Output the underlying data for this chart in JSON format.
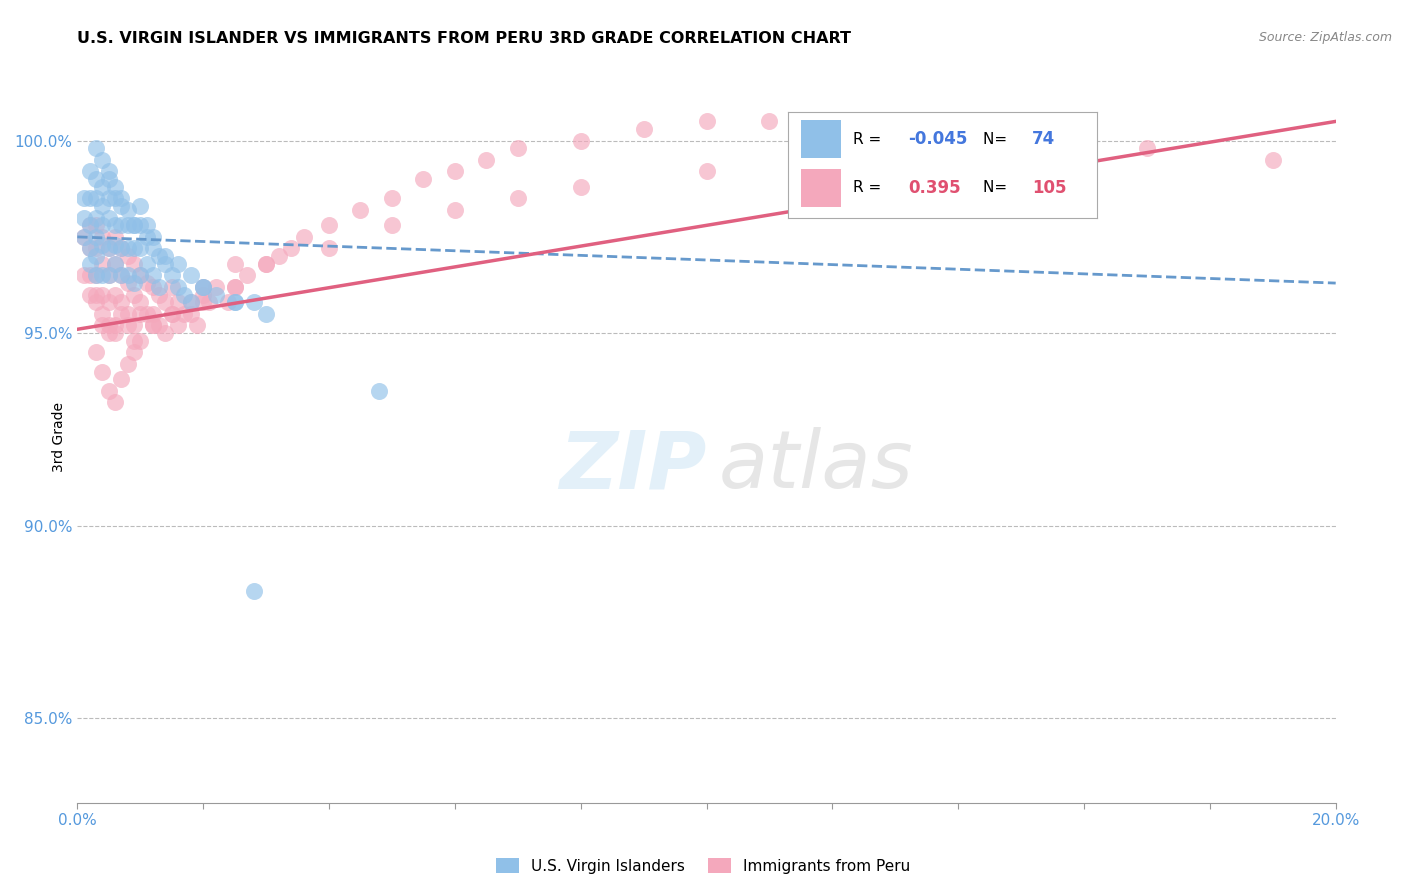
{
  "title": "U.S. VIRGIN ISLANDER VS IMMIGRANTS FROM PERU 3RD GRADE CORRELATION CHART",
  "source": "Source: ZipAtlas.com",
  "ylabel": "3rd Grade",
  "ylabel_ticks": [
    "85.0%",
    "90.0%",
    "95.0%",
    "100.0%"
  ],
  "ylabel_values": [
    0.85,
    0.9,
    0.95,
    1.0
  ],
  "xmin": 0.0,
  "xmax": 0.2,
  "ymin": 0.828,
  "ymax": 1.018,
  "legend_R_blue": "-0.045",
  "legend_N_blue": "74",
  "legend_R_pink": "0.395",
  "legend_N_pink": "105",
  "blue_color": "#90C0E8",
  "pink_color": "#F4A8BC",
  "trend_blue_color": "#6699CC",
  "trend_pink_color": "#E06080",
  "blue_trend_x": [
    0.0,
    0.2
  ],
  "blue_trend_y": [
    0.975,
    0.963
  ],
  "pink_trend_x": [
    0.0,
    0.2
  ],
  "pink_trend_y": [
    0.951,
    1.005
  ],
  "blue_scatter_x": [
    0.001,
    0.001,
    0.001,
    0.002,
    0.002,
    0.002,
    0.002,
    0.002,
    0.003,
    0.003,
    0.003,
    0.003,
    0.003,
    0.003,
    0.004,
    0.004,
    0.004,
    0.004,
    0.004,
    0.005,
    0.005,
    0.005,
    0.005,
    0.005,
    0.006,
    0.006,
    0.006,
    0.006,
    0.007,
    0.007,
    0.007,
    0.007,
    0.008,
    0.008,
    0.008,
    0.009,
    0.009,
    0.009,
    0.01,
    0.01,
    0.01,
    0.011,
    0.011,
    0.012,
    0.012,
    0.013,
    0.013,
    0.014,
    0.015,
    0.016,
    0.017,
    0.018,
    0.02,
    0.022,
    0.025,
    0.028,
    0.03,
    0.003,
    0.004,
    0.005,
    0.006,
    0.007,
    0.008,
    0.009,
    0.01,
    0.011,
    0.012,
    0.014,
    0.016,
    0.018,
    0.02,
    0.025,
    0.048,
    0.028
  ],
  "blue_scatter_y": [
    0.98,
    0.975,
    0.985,
    0.985,
    0.978,
    0.972,
    0.968,
    0.992,
    0.99,
    0.985,
    0.98,
    0.975,
    0.97,
    0.965,
    0.988,
    0.983,
    0.978,
    0.973,
    0.965,
    0.99,
    0.985,
    0.98,
    0.972,
    0.965,
    0.985,
    0.978,
    0.973,
    0.968,
    0.983,
    0.978,
    0.972,
    0.965,
    0.978,
    0.972,
    0.965,
    0.978,
    0.972,
    0.963,
    0.978,
    0.972,
    0.965,
    0.975,
    0.968,
    0.972,
    0.965,
    0.97,
    0.962,
    0.968,
    0.965,
    0.962,
    0.96,
    0.958,
    0.962,
    0.96,
    0.958,
    0.958,
    0.955,
    0.998,
    0.995,
    0.992,
    0.988,
    0.985,
    0.982,
    0.978,
    0.983,
    0.978,
    0.975,
    0.97,
    0.968,
    0.965,
    0.962,
    0.958,
    0.935,
    0.883
  ],
  "pink_scatter_x": [
    0.001,
    0.001,
    0.002,
    0.002,
    0.002,
    0.003,
    0.003,
    0.003,
    0.003,
    0.004,
    0.004,
    0.004,
    0.004,
    0.005,
    0.005,
    0.005,
    0.005,
    0.006,
    0.006,
    0.006,
    0.006,
    0.007,
    0.007,
    0.007,
    0.008,
    0.008,
    0.008,
    0.009,
    0.009,
    0.009,
    0.01,
    0.01,
    0.011,
    0.011,
    0.012,
    0.012,
    0.013,
    0.013,
    0.014,
    0.015,
    0.015,
    0.016,
    0.017,
    0.018,
    0.019,
    0.02,
    0.021,
    0.022,
    0.024,
    0.025,
    0.027,
    0.03,
    0.032,
    0.034,
    0.036,
    0.04,
    0.045,
    0.05,
    0.055,
    0.06,
    0.065,
    0.07,
    0.08,
    0.09,
    0.1,
    0.11,
    0.13,
    0.15,
    0.17,
    0.19,
    0.002,
    0.003,
    0.004,
    0.005,
    0.006,
    0.007,
    0.008,
    0.009,
    0.01,
    0.012,
    0.014,
    0.016,
    0.018,
    0.02,
    0.025,
    0.03,
    0.04,
    0.05,
    0.06,
    0.07,
    0.08,
    0.1,
    0.12,
    0.003,
    0.004,
    0.005,
    0.006,
    0.007,
    0.008,
    0.009,
    0.01,
    0.012,
    0.015,
    0.02,
    0.025
  ],
  "pink_scatter_y": [
    0.975,
    0.965,
    0.978,
    0.972,
    0.96,
    0.978,
    0.972,
    0.965,
    0.958,
    0.975,
    0.968,
    0.96,
    0.952,
    0.972,
    0.965,
    0.958,
    0.95,
    0.975,
    0.968,
    0.96,
    0.952,
    0.972,
    0.965,
    0.958,
    0.97,
    0.963,
    0.955,
    0.968,
    0.96,
    0.952,
    0.965,
    0.958,
    0.963,
    0.955,
    0.962,
    0.955,
    0.96,
    0.952,
    0.958,
    0.962,
    0.955,
    0.958,
    0.955,
    0.958,
    0.952,
    0.96,
    0.958,
    0.962,
    0.958,
    0.962,
    0.965,
    0.968,
    0.97,
    0.972,
    0.975,
    0.978,
    0.982,
    0.985,
    0.99,
    0.992,
    0.995,
    0.998,
    1.0,
    1.003,
    1.005,
    1.005,
    1.003,
    1.0,
    0.998,
    0.995,
    0.965,
    0.96,
    0.955,
    0.952,
    0.95,
    0.955,
    0.952,
    0.948,
    0.955,
    0.952,
    0.95,
    0.952,
    0.955,
    0.958,
    0.962,
    0.968,
    0.972,
    0.978,
    0.982,
    0.985,
    0.988,
    0.992,
    0.995,
    0.945,
    0.94,
    0.935,
    0.932,
    0.938,
    0.942,
    0.945,
    0.948,
    0.952,
    0.955,
    0.962,
    0.968
  ]
}
